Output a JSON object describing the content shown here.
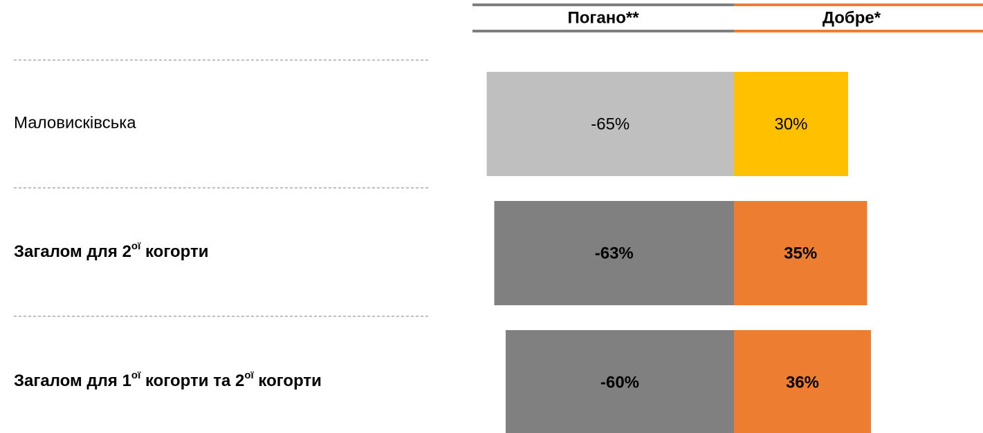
{
  "chart_data": {
    "type": "diverging-bar",
    "categories": [
      "Маловисківська",
      "Загалом для 2ої  когорти",
      "Загалом для 1ої когорти та 2ої когорти"
    ],
    "bold": [
      false,
      true,
      true
    ],
    "xlim": [
      -70,
      40
    ],
    "series": [
      {
        "name": "Погано**",
        "color": "#7f7f7f",
        "colors": [
          "#bfbfbf",
          "#808080",
          "#808080"
        ],
        "values": [
          -65,
          -63,
          -60
        ],
        "value_labels": [
          "-65%",
          "-63%",
          "-60%"
        ]
      },
      {
        "name": "Добре*",
        "color": "#ed7d31",
        "colors": [
          "#ffc000",
          "#ed7d31",
          "#ed7d31"
        ],
        "values": [
          30,
          35,
          36
        ],
        "value_labels": [
          "30%",
          "35%",
          "36%"
        ]
      }
    ]
  }
}
